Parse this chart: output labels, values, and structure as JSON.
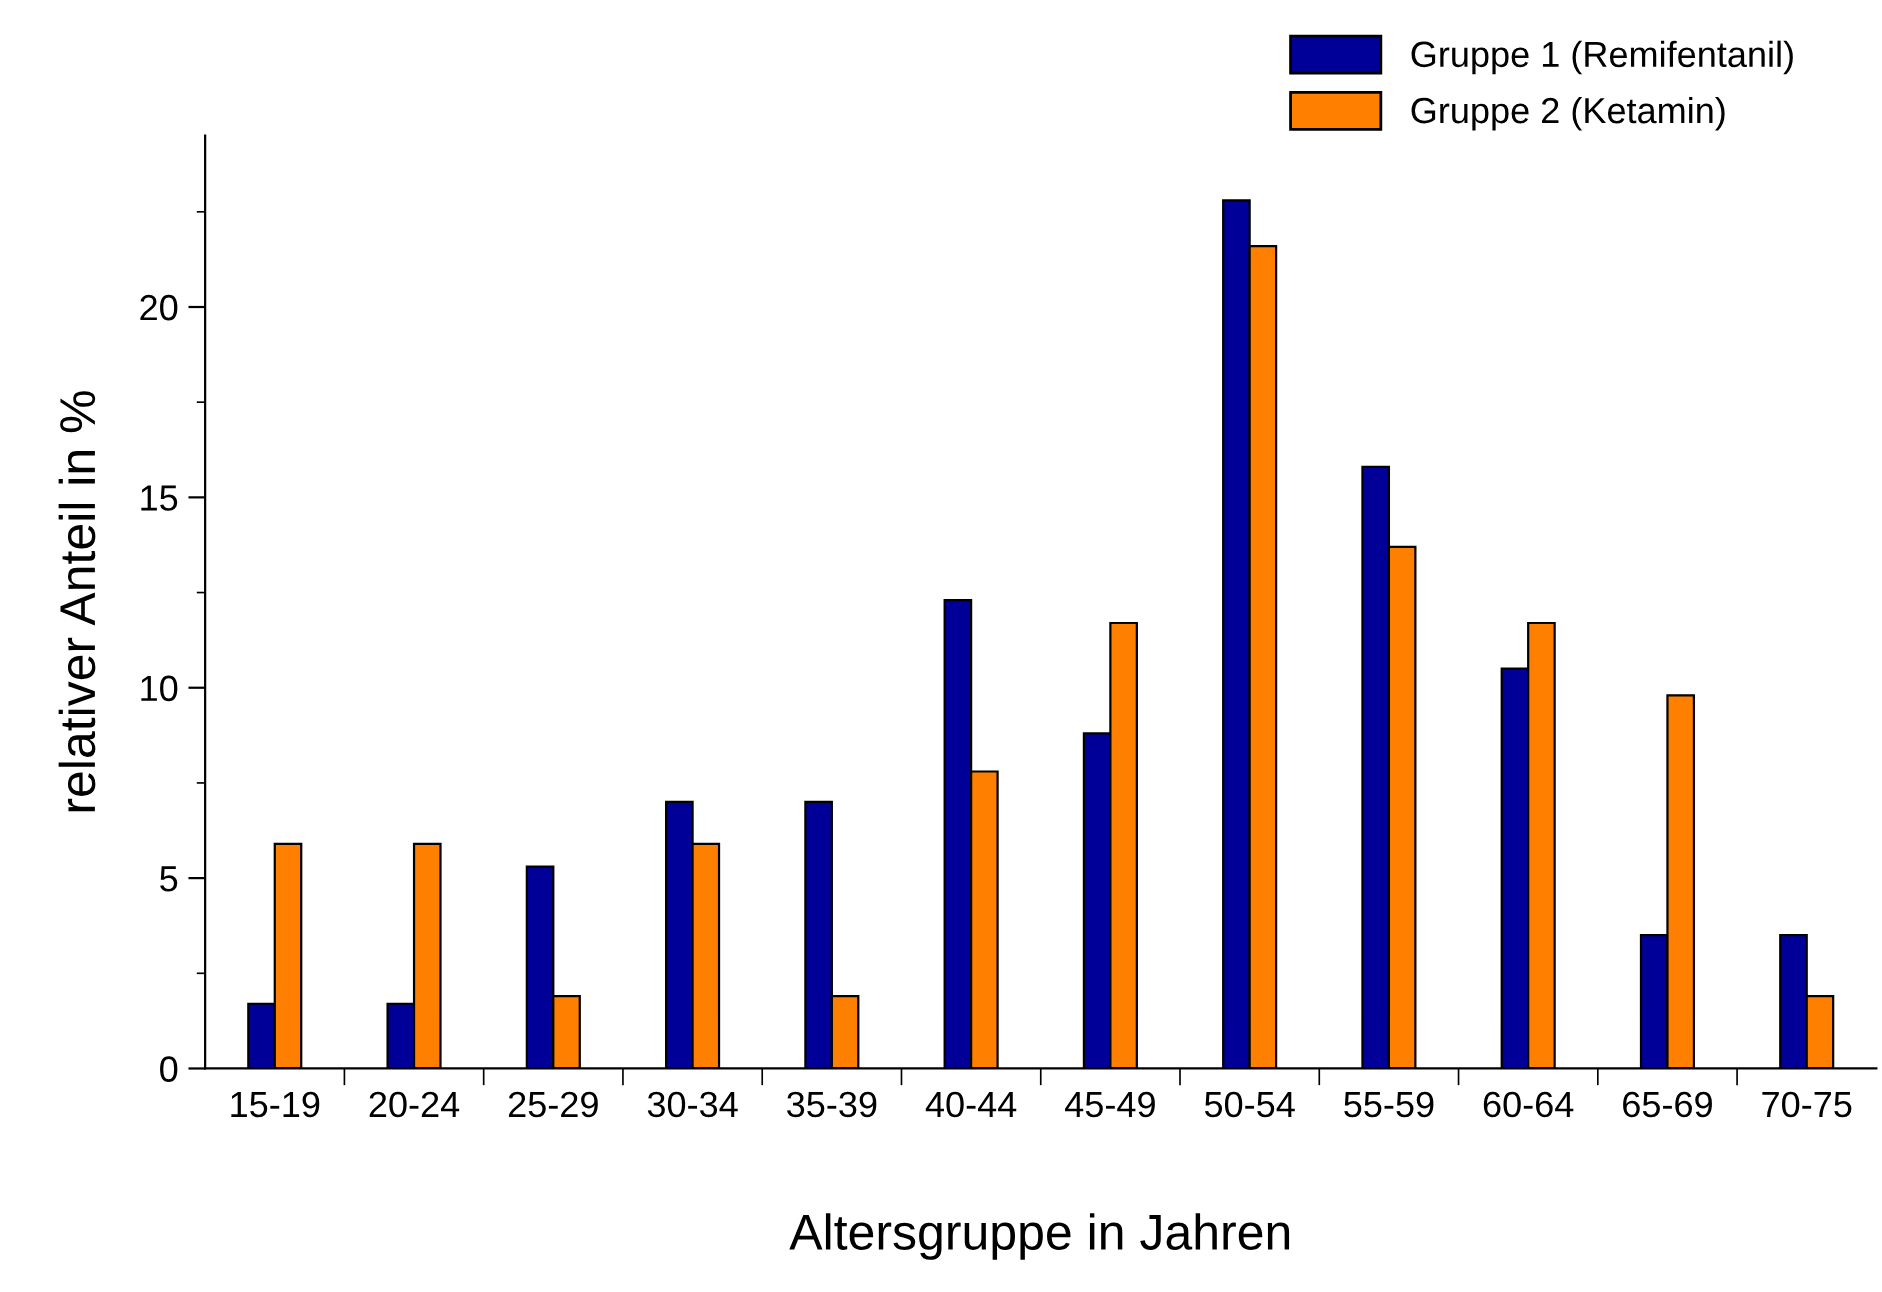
{
  "chart_data": {
    "type": "bar",
    "xlabel": "Altersgruppe in Jahren",
    "ylabel": "relativer Anteil in %",
    "categories": [
      "15-19",
      "20-24",
      "25-29",
      "30-34",
      "35-39",
      "40-44",
      "45-49",
      "50-54",
      "55-59",
      "60-64",
      "65-69",
      "70-75"
    ],
    "series": [
      {
        "name": "Gruppe 1 (Remifentanil)",
        "color": "#000099",
        "values": [
          1.7,
          1.7,
          5.3,
          7.0,
          7.0,
          12.3,
          8.8,
          22.8,
          15.8,
          10.5,
          3.5,
          3.5
        ]
      },
      {
        "name": "Gruppe 2 (Ketamin)",
        "color": "#ff8000",
        "values": [
          5.9,
          5.9,
          1.9,
          5.9,
          1.9,
          7.8,
          11.7,
          21.6,
          13.7,
          11.7,
          9.8,
          1.9
        ]
      }
    ],
    "ylim": [
      0,
      24.5
    ],
    "yticks": [
      0,
      5,
      10,
      15,
      20
    ],
    "grid": false,
    "legend": "top right"
  }
}
